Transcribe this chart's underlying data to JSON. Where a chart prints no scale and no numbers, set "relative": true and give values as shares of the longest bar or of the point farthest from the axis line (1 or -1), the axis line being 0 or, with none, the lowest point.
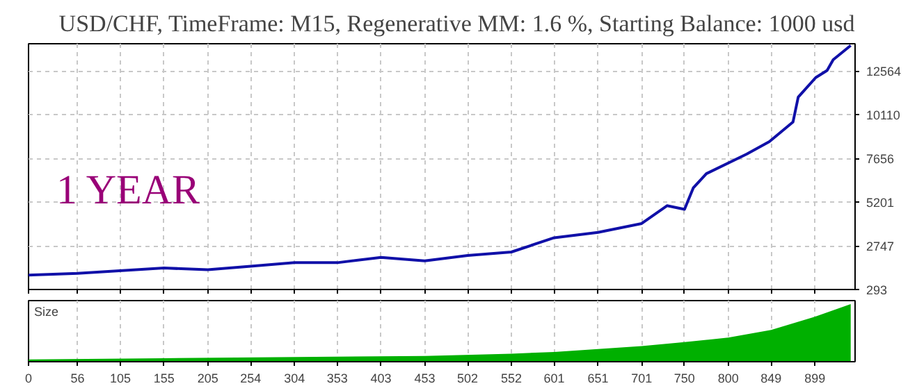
{
  "chart_data": [
    {
      "type": "line",
      "title": "USD/CHF, TimeFrame: M15, Regenerative MM: 1.6 %, Starting Balance: 1000 usd",
      "annotations": [
        "1 YEAR"
      ],
      "x": [
        0,
        56,
        155,
        205,
        254,
        304,
        353,
        403,
        453,
        502,
        552,
        601,
        651,
        701,
        730,
        750,
        760,
        775,
        821,
        847,
        874,
        880,
        900,
        913,
        920,
        940
      ],
      "series": [
        {
          "color": "#1010a8",
          "values": [
            1100,
            1200,
            1500,
            1400,
            1600,
            1800,
            1800,
            2100,
            1900,
            2200,
            2400,
            3200,
            3500,
            4000,
            5000,
            4800,
            6000,
            6800,
            7900,
            8600,
            9700,
            11100,
            12200,
            12600,
            13200,
            14000
          ]
        }
      ],
      "xlim": [
        0,
        945
      ],
      "ylim": [
        293,
        14100
      ],
      "xticks": [
        0,
        56,
        105,
        155,
        205,
        254,
        304,
        353,
        403,
        453,
        502,
        552,
        601,
        651,
        701,
        750,
        800,
        849,
        899
      ],
      "yticks": [
        293,
        2747,
        5201,
        7656,
        10110,
        12564
      ],
      "grid": true,
      "tick_labels": "y"
    },
    {
      "type": "area",
      "title": "Size",
      "relative": true,
      "x": [
        0,
        155,
        453,
        552,
        601,
        701,
        750,
        800,
        849,
        899,
        940
      ],
      "series": [
        {
          "color": "#00b000",
          "values": [
            0.04,
            0.06,
            0.1,
            0.14,
            0.17,
            0.27,
            0.34,
            0.42,
            0.55,
            0.78,
            1.0
          ]
        }
      ],
      "xlim": [
        0,
        945
      ],
      "xticks": [
        0,
        56,
        105,
        155,
        205,
        254,
        304,
        353,
        403,
        453,
        502,
        552,
        601,
        651,
        701,
        750,
        800,
        849,
        899
      ],
      "grid": "x"
    }
  ]
}
